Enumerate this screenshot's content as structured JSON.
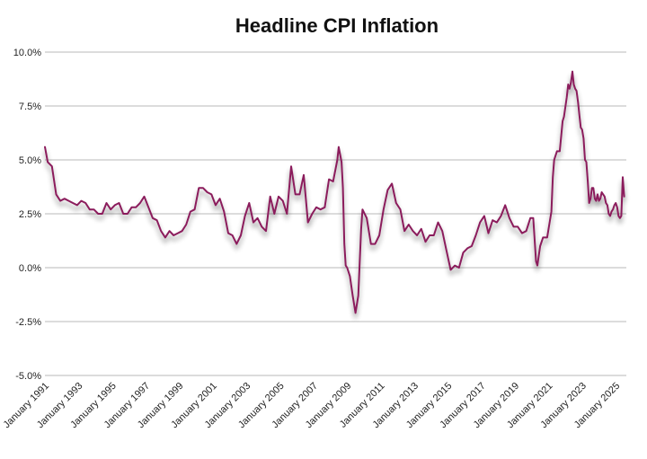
{
  "chart_data": {
    "type": "line",
    "title": "Headline CPI Inflation",
    "xlabel": "",
    "ylabel": "",
    "ylim": [
      -5,
      10
    ],
    "xlim": [
      "1991-01",
      "2025-06"
    ],
    "grid": true,
    "yticks": [
      "10.0%",
      "7.5%",
      "5.0%",
      "2.5%",
      "0.0%",
      "-2.5%",
      "-5.0%"
    ],
    "ytick_values": [
      10,
      7.5,
      5,
      2.5,
      0,
      -2.5,
      -5
    ],
    "xticks": [
      "January 1991",
      "January 1993",
      "January 1995",
      "January 1997",
      "January 1999",
      "January 2001",
      "January 2003",
      "January 2005",
      "January 2007",
      "January 2009",
      "January 2011",
      "January 2013",
      "January 2015",
      "January 2017",
      "January 2019",
      "January 2021",
      "January 2023",
      "January 2025"
    ],
    "line_color": "#8b1d5c",
    "series": [
      {
        "values": [
          [
            "1991-01",
            5.6
          ],
          [
            "1991-03",
            4.9
          ],
          [
            "1991-06",
            4.7
          ],
          [
            "1991-09",
            3.4
          ],
          [
            "1991-12",
            3.1
          ],
          [
            "1992-03",
            3.2
          ],
          [
            "1992-06",
            3.1
          ],
          [
            "1992-09",
            3.0
          ],
          [
            "1992-12",
            2.9
          ],
          [
            "1993-03",
            3.1
          ],
          [
            "1993-06",
            3.0
          ],
          [
            "1993-09",
            2.7
          ],
          [
            "1993-12",
            2.7
          ],
          [
            "1994-03",
            2.5
          ],
          [
            "1994-06",
            2.5
          ],
          [
            "1994-09",
            3.0
          ],
          [
            "1994-12",
            2.7
          ],
          [
            "1995-03",
            2.9
          ],
          [
            "1995-06",
            3.0
          ],
          [
            "1995-09",
            2.5
          ],
          [
            "1995-12",
            2.5
          ],
          [
            "1996-03",
            2.8
          ],
          [
            "1996-06",
            2.8
          ],
          [
            "1996-09",
            3.0
          ],
          [
            "1996-12",
            3.3
          ],
          [
            "1997-03",
            2.8
          ],
          [
            "1997-06",
            2.3
          ],
          [
            "1997-09",
            2.2
          ],
          [
            "1997-12",
            1.7
          ],
          [
            "1998-03",
            1.4
          ],
          [
            "1998-06",
            1.7
          ],
          [
            "1998-09",
            1.5
          ],
          [
            "1998-12",
            1.6
          ],
          [
            "1999-03",
            1.7
          ],
          [
            "1999-06",
            2.0
          ],
          [
            "1999-09",
            2.6
          ],
          [
            "1999-12",
            2.7
          ],
          [
            "2000-03",
            3.7
          ],
          [
            "2000-06",
            3.7
          ],
          [
            "2000-09",
            3.5
          ],
          [
            "2000-12",
            3.4
          ],
          [
            "2001-03",
            2.9
          ],
          [
            "2001-06",
            3.2
          ],
          [
            "2001-09",
            2.6
          ],
          [
            "2001-12",
            1.6
          ],
          [
            "2002-03",
            1.5
          ],
          [
            "2002-06",
            1.1
          ],
          [
            "2002-09",
            1.5
          ],
          [
            "2002-12",
            2.4
          ],
          [
            "2003-03",
            3.0
          ],
          [
            "2003-06",
            2.1
          ],
          [
            "2003-09",
            2.3
          ],
          [
            "2003-12",
            1.9
          ],
          [
            "2004-03",
            1.7
          ],
          [
            "2004-06",
            3.3
          ],
          [
            "2004-09",
            2.5
          ],
          [
            "2004-12",
            3.3
          ],
          [
            "2005-03",
            3.1
          ],
          [
            "2005-06",
            2.5
          ],
          [
            "2005-09",
            4.7
          ],
          [
            "2005-12",
            3.4
          ],
          [
            "2006-03",
            3.4
          ],
          [
            "2006-06",
            4.3
          ],
          [
            "2006-09",
            2.1
          ],
          [
            "2006-12",
            2.5
          ],
          [
            "2007-03",
            2.8
          ],
          [
            "2007-06",
            2.7
          ],
          [
            "2007-09",
            2.8
          ],
          [
            "2007-12",
            4.1
          ],
          [
            "2008-03",
            4.0
          ],
          [
            "2008-06",
            5.0
          ],
          [
            "2008-07",
            5.6
          ],
          [
            "2008-09",
            4.9
          ],
          [
            "2008-10",
            3.7
          ],
          [
            "2008-11",
            1.1
          ],
          [
            "2008-12",
            0.1
          ],
          [
            "2009-01",
            0.0
          ],
          [
            "2009-03",
            -0.4
          ],
          [
            "2009-05",
            -1.3
          ],
          [
            "2009-07",
            -2.1
          ],
          [
            "2009-09",
            -1.3
          ],
          [
            "2009-11",
            1.8
          ],
          [
            "2009-12",
            2.7
          ],
          [
            "2010-03",
            2.3
          ],
          [
            "2010-06",
            1.1
          ],
          [
            "2010-09",
            1.1
          ],
          [
            "2010-12",
            1.5
          ],
          [
            "2011-03",
            2.7
          ],
          [
            "2011-06",
            3.6
          ],
          [
            "2011-09",
            3.9
          ],
          [
            "2011-12",
            3.0
          ],
          [
            "2012-03",
            2.7
          ],
          [
            "2012-06",
            1.7
          ],
          [
            "2012-09",
            2.0
          ],
          [
            "2012-12",
            1.7
          ],
          [
            "2013-03",
            1.5
          ],
          [
            "2013-06",
            1.8
          ],
          [
            "2013-09",
            1.2
          ],
          [
            "2013-12",
            1.5
          ],
          [
            "2014-03",
            1.5
          ],
          [
            "2014-06",
            2.1
          ],
          [
            "2014-09",
            1.7
          ],
          [
            "2014-12",
            0.8
          ],
          [
            "2015-03",
            -0.1
          ],
          [
            "2015-06",
            0.1
          ],
          [
            "2015-09",
            0.0
          ],
          [
            "2015-12",
            0.7
          ],
          [
            "2016-03",
            0.9
          ],
          [
            "2016-06",
            1.0
          ],
          [
            "2016-09",
            1.5
          ],
          [
            "2016-12",
            2.1
          ],
          [
            "2017-03",
            2.4
          ],
          [
            "2017-06",
            1.6
          ],
          [
            "2017-09",
            2.2
          ],
          [
            "2017-12",
            2.1
          ],
          [
            "2018-03",
            2.4
          ],
          [
            "2018-06",
            2.9
          ],
          [
            "2018-09",
            2.3
          ],
          [
            "2018-12",
            1.9
          ],
          [
            "2019-03",
            1.9
          ],
          [
            "2019-06",
            1.6
          ],
          [
            "2019-09",
            1.7
          ],
          [
            "2019-12",
            2.3
          ],
          [
            "2020-02",
            2.3
          ],
          [
            "2020-04",
            0.3
          ],
          [
            "2020-05",
            0.1
          ],
          [
            "2020-07",
            1.0
          ],
          [
            "2020-09",
            1.4
          ],
          [
            "2020-12",
            1.4
          ],
          [
            "2021-03",
            2.6
          ],
          [
            "2021-04",
            4.2
          ],
          [
            "2021-05",
            5.0
          ],
          [
            "2021-07",
            5.4
          ],
          [
            "2021-09",
            5.4
          ],
          [
            "2021-11",
            6.8
          ],
          [
            "2021-12",
            7.0
          ],
          [
            "2022-02",
            7.9
          ],
          [
            "2022-03",
            8.5
          ],
          [
            "2022-04",
            8.3
          ],
          [
            "2022-05",
            8.6
          ],
          [
            "2022-06",
            9.1
          ],
          [
            "2022-07",
            8.5
          ],
          [
            "2022-08",
            8.3
          ],
          [
            "2022-09",
            8.2
          ],
          [
            "2022-10",
            7.7
          ],
          [
            "2022-11",
            7.1
          ],
          [
            "2022-12",
            6.5
          ],
          [
            "2023-01",
            6.4
          ],
          [
            "2023-02",
            6.0
          ],
          [
            "2023-03",
            5.0
          ],
          [
            "2023-04",
            4.9
          ],
          [
            "2023-05",
            4.0
          ],
          [
            "2023-06",
            3.0
          ],
          [
            "2023-07",
            3.2
          ],
          [
            "2023-08",
            3.7
          ],
          [
            "2023-09",
            3.7
          ],
          [
            "2023-10",
            3.2
          ],
          [
            "2023-11",
            3.1
          ],
          [
            "2023-12",
            3.4
          ],
          [
            "2024-01",
            3.1
          ],
          [
            "2024-02",
            3.2
          ],
          [
            "2024-03",
            3.5
          ],
          [
            "2024-04",
            3.4
          ],
          [
            "2024-05",
            3.3
          ],
          [
            "2024-06",
            3.0
          ],
          [
            "2024-07",
            2.9
          ],
          [
            "2024-08",
            2.5
          ],
          [
            "2024-09",
            2.4
          ],
          [
            "2024-10",
            2.6
          ],
          [
            "2024-11",
            2.7
          ],
          [
            "2024-12",
            2.9
          ],
          [
            "2025-01",
            3.0
          ],
          [
            "2025-02",
            2.8
          ],
          [
            "2025-03",
            2.4
          ],
          [
            "2025-04",
            2.3
          ],
          [
            "2025-05",
            2.4
          ],
          [
            "2025-06",
            4.2
          ],
          [
            "2025-07",
            3.3
          ]
        ]
      }
    ]
  }
}
